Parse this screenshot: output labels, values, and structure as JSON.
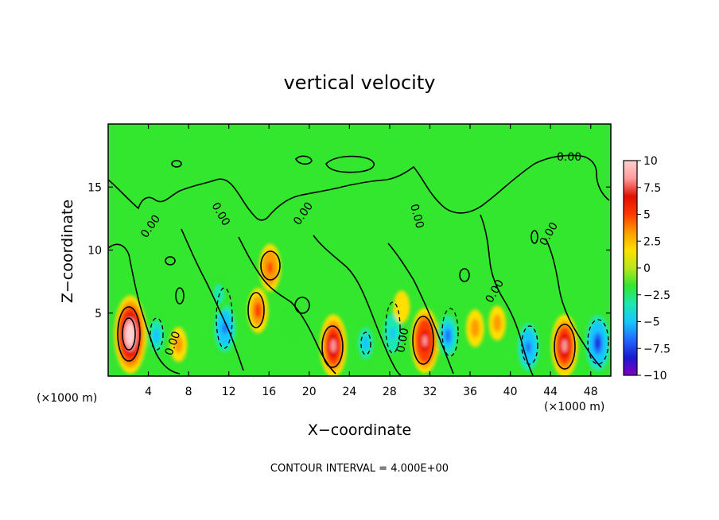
{
  "chart_data": {
    "type": "heatmap",
    "title": "vertical velocity",
    "xlabel": "X−coordinate",
    "ylabel": "Z−coordinate",
    "x_unit_label": "(×1000 m)",
    "z_unit_label": "(×1000 m)",
    "xlim": [
      0,
      50
    ],
    "ylim": [
      0,
      20
    ],
    "x_ticks": [
      4,
      8,
      12,
      16,
      20,
      24,
      28,
      32,
      36,
      40,
      44,
      48
    ],
    "y_ticks": [
      5,
      10,
      15
    ],
    "colorbar": {
      "range": [
        -10,
        10
      ],
      "tick_values": [
        10,
        7.5,
        5,
        2.5,
        0,
        -2.5,
        -5,
        -7.5,
        -10
      ],
      "tick_labels": [
        "10",
        "7.5",
        "5",
        "2.5",
        "0",
        "−2.5",
        "−5",
        "−7.5",
        "−10"
      ],
      "stops": [
        "#8000c0",
        "#1a1ad0",
        "#1f6bff",
        "#19c6ff",
        "#1ce8b0",
        "#33e62e",
        "#b8e61e",
        "#ffe000",
        "#ff9b00",
        "#ff3a00",
        "#e01000",
        "#ff9a9a",
        "#ffd0d0"
      ]
    },
    "contour_interval_text": "CONTOUR INTERVAL = 4.000E+00",
    "contour_labels": [
      "0.00",
      "0.00",
      "0.00",
      "0.00",
      "0.00",
      "0.00",
      "0.00",
      "0.00",
      "0.00"
    ],
    "features": [
      {
        "x": 2.2,
        "z": 3.3,
        "w": 11.0
      },
      {
        "x": 4.8,
        "z": 3.2,
        "w": -4.5
      },
      {
        "x": 7.0,
        "z": 2.5,
        "w": 2.5
      },
      {
        "x": 11.6,
        "z": 3.8,
        "w": -7.0
      },
      {
        "x": 11.0,
        "z": 6.5,
        "w": -3.0
      },
      {
        "x": 14.9,
        "z": 5.2,
        "w": 4.5
      },
      {
        "x": 16.1,
        "z": 8.6,
        "w": 5.0
      },
      {
        "x": 18.3,
        "z": 4.2,
        "w": -2.5
      },
      {
        "x": 22.4,
        "z": 2.4,
        "w": 8.0
      },
      {
        "x": 25.6,
        "z": 2.6,
        "w": -4.5
      },
      {
        "x": 28.3,
        "z": 3.4,
        "w": -5.5
      },
      {
        "x": 29.2,
        "z": 5.5,
        "w": 2.0
      },
      {
        "x": 31.5,
        "z": 2.8,
        "w": 8.5
      },
      {
        "x": 33.8,
        "z": 3.2,
        "w": -6.0
      },
      {
        "x": 36.5,
        "z": 3.8,
        "w": 3.0
      },
      {
        "x": 38.7,
        "z": 4.2,
        "w": 2.5
      },
      {
        "x": 41.8,
        "z": 2.3,
        "w": -7.0
      },
      {
        "x": 45.4,
        "z": 2.4,
        "w": 8.0
      },
      {
        "x": 48.7,
        "z": 2.6,
        "w": -8.5
      }
    ]
  }
}
